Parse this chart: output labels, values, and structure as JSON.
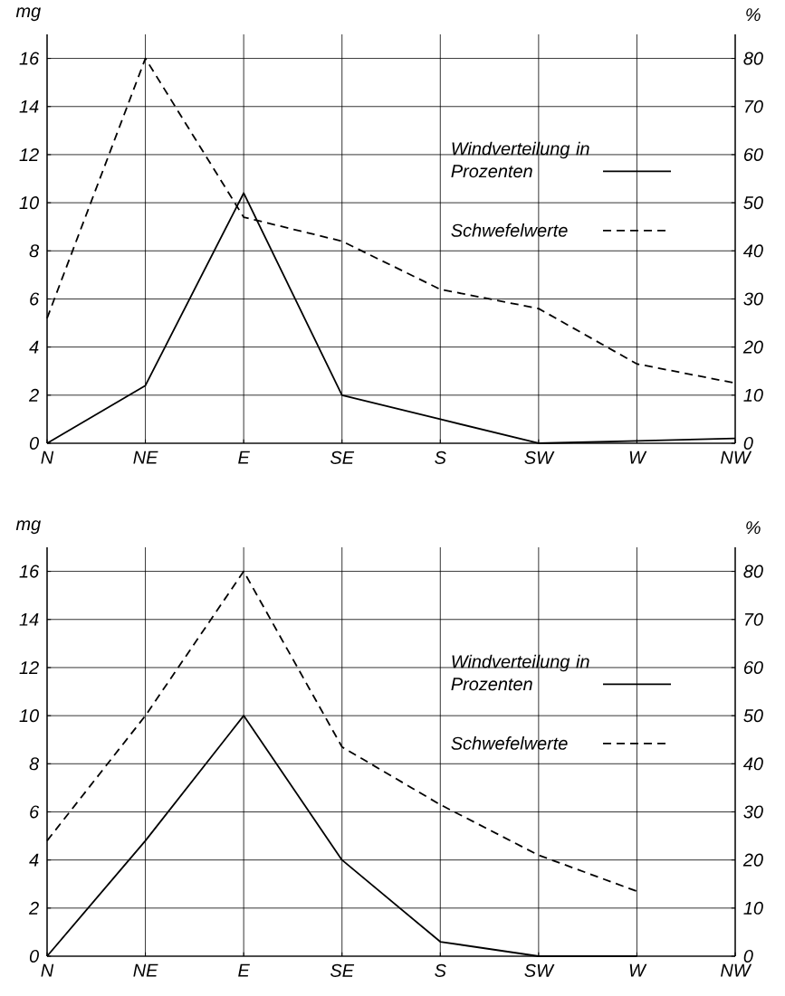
{
  "chart_data": [
    {
      "type": "line",
      "ylabel": "mg",
      "y2label": "%",
      "categories": [
        "N",
        "NE",
        "E",
        "SE",
        "S",
        "SW",
        "W",
        "NW"
      ],
      "ylim": [
        0,
        17
      ],
      "yticks": [
        0,
        2,
        4,
        6,
        8,
        10,
        12,
        14,
        16
      ],
      "y2lim": [
        0,
        85
      ],
      "y2ticks": [
        0,
        10,
        20,
        30,
        40,
        50,
        60,
        70,
        80
      ],
      "grid": true,
      "legend": "right",
      "series": [
        {
          "name": "Windverteilung in Prozenten",
          "color": "#000000",
          "line_style": "solid",
          "axis": "y2",
          "values": [
            0,
            12,
            52,
            10,
            5,
            0,
            0.5,
            1
          ]
        },
        {
          "name": "Schwefelwerte",
          "color": "#000000",
          "line_style": "dashed",
          "values": [
            5.2,
            16,
            9.4,
            8.4,
            6.4,
            5.6,
            3.3,
            2.5
          ]
        }
      ]
    },
    {
      "type": "line",
      "ylabel": "mg",
      "y2label": "%",
      "categories": [
        "N",
        "NE",
        "E",
        "SE",
        "S",
        "SW",
        "W",
        "NW"
      ],
      "ylim": [
        0,
        17
      ],
      "yticks": [
        0,
        2,
        4,
        6,
        8,
        10,
        12,
        14,
        16
      ],
      "y2lim": [
        0,
        85
      ],
      "y2ticks": [
        0,
        10,
        20,
        30,
        40,
        50,
        60,
        70,
        80
      ],
      "grid": true,
      "legend": "right",
      "series": [
        {
          "name": "Windverteilung in Prozenten",
          "color": "#000000",
          "line_style": "solid",
          "axis": "y2",
          "values": [
            0,
            24,
            50,
            20,
            3,
            0,
            0,
            null
          ]
        },
        {
          "name": "Schwefelwerte",
          "color": "#000000",
          "line_style": "dashed",
          "values": [
            4.8,
            10,
            16,
            8.7,
            6.3,
            4.2,
            2.7,
            null
          ]
        }
      ]
    }
  ]
}
